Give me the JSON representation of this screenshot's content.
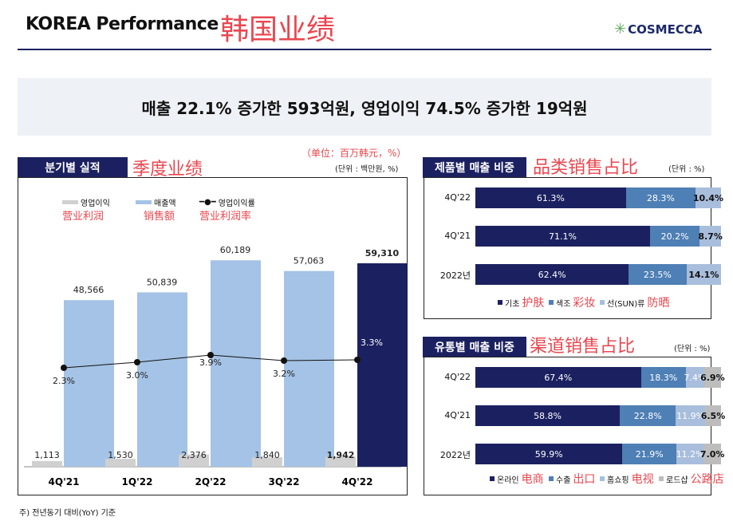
{
  "header": {
    "title": "KOREA Performance",
    "title_cn": "韩国业绩",
    "logo": "COSMECCA",
    "headline": "매출 22.1% 증가한 593억원, 영업이익 74.5% 증가한 19억원"
  },
  "footnote": "주) 전년동기 대비(YoY) 기준",
  "colors": {
    "navy": "#1b2160",
    "sales": "#a4c3e6",
    "op": "#d0d0d0",
    "mid": "#4e7fb5",
    "light": "#a8bedc",
    "gray": "#bdbdbd",
    "annot": "#e8474f"
  },
  "chart_data": [
    {
      "type": "bar+line",
      "panel_title": "분기별 실적",
      "panel_title_cn": "季度业绩",
      "unit": "(단위 : 백만원, %)",
      "unit_cn": "（单位：百万韩元，%）",
      "categories": [
        "4Q'21",
        "1Q'22",
        "2Q'22",
        "3Q'22",
        "4Q'22"
      ],
      "legend": [
        {
          "label": "영업이익",
          "cn": "营业利润"
        },
        {
          "label": "매출액",
          "cn": "销售额"
        },
        {
          "label": "영업이익률",
          "cn": "营业利润率"
        }
      ],
      "series": [
        {
          "name": "영업이익",
          "type": "bar",
          "values": [
            1113,
            1530,
            2376,
            1840,
            1942
          ]
        },
        {
          "name": "매출액",
          "type": "bar",
          "values": [
            48566,
            50839,
            60189,
            57063,
            59310
          ]
        },
        {
          "name": "영업이익률",
          "type": "line",
          "values": [
            2.3,
            3.0,
            3.9,
            3.2,
            3.3
          ]
        }
      ]
    },
    {
      "type": "stacked-bar-horizontal",
      "panel_title": "제품별 매출 비중",
      "panel_title_cn": "品类销售占比",
      "unit": "(단위 : %)",
      "categories": [
        "4Q'22",
        "4Q'21",
        "2022년"
      ],
      "series": [
        {
          "name": "기초",
          "cn": "护肤",
          "values": [
            61.3,
            71.1,
            62.4
          ]
        },
        {
          "name": "색조",
          "cn": "彩妆",
          "values": [
            28.3,
            20.2,
            23.5
          ]
        },
        {
          "name": "선(SUN)류",
          "cn": "防晒",
          "values": [
            10.4,
            8.7,
            14.1
          ]
        }
      ]
    },
    {
      "type": "stacked-bar-horizontal",
      "panel_title": "유통별 매출 비중",
      "panel_title_cn": "渠道销售占比",
      "unit": "(단위 : %)",
      "categories": [
        "4Q'22",
        "4Q'21",
        "2022년"
      ],
      "series": [
        {
          "name": "온라인",
          "cn": "电商",
          "values": [
            67.4,
            58.8,
            59.9
          ]
        },
        {
          "name": "수출",
          "cn": "出口",
          "values": [
            18.3,
            22.8,
            21.9
          ]
        },
        {
          "name": "홈쇼핑",
          "cn": "电视",
          "values": [
            7.4,
            11.9,
            11.2
          ]
        },
        {
          "name": "로드샵",
          "cn": "公路店",
          "values": [
            6.9,
            6.5,
            7.0
          ]
        }
      ]
    }
  ]
}
